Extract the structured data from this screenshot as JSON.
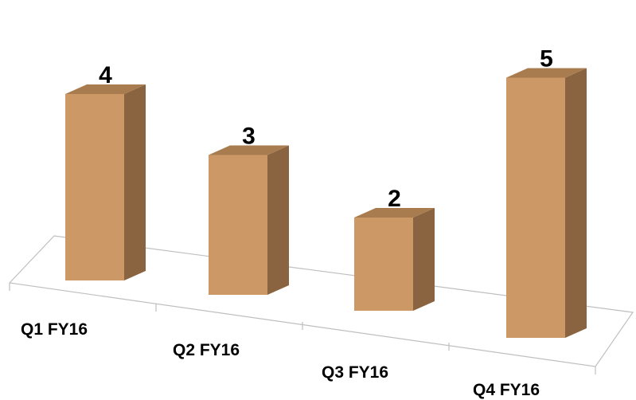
{
  "chart_data": {
    "type": "bar",
    "categories": [
      "Q1 FY16",
      "Q2 FY16",
      "Q3 FY16",
      "Q4 FY16"
    ],
    "values": [
      4,
      3,
      2,
      5
    ],
    "data_labels": [
      "4",
      "3",
      "2",
      "5"
    ],
    "ylim": [
      0,
      5
    ],
    "grid": false,
    "legend": "none",
    "style": "3d-column",
    "colors": {
      "bar_front": "#CC9966",
      "bar_top": "#A97C4F",
      "bar_side": "#8A6440",
      "floor_line": "#BFBFBF"
    }
  }
}
